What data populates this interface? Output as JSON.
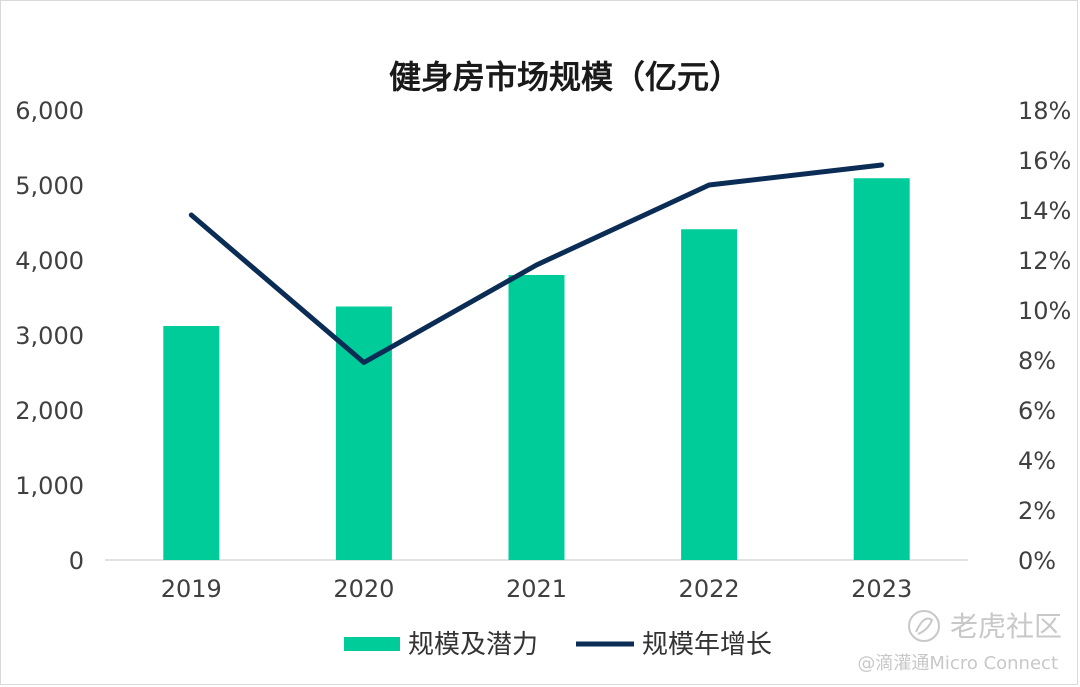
{
  "colors": {
    "bar": "#00cc99",
    "line": "#0b2d55",
    "axis": "#d9d9d9"
  },
  "chart_data": {
    "type": "bar",
    "title": "健身房市场规模（亿元）",
    "categories": [
      "2019",
      "2020",
      "2021",
      "2022",
      "2023"
    ],
    "series": [
      {
        "name": "规模及潜力",
        "type": "bar",
        "axis": "left",
        "values": [
          3120,
          3380,
          3800,
          4410,
          5090
        ]
      },
      {
        "name": "规模年增长",
        "type": "line",
        "axis": "right",
        "values": [
          0.138,
          0.079,
          0.118,
          0.15,
          0.158
        ]
      }
    ],
    "y_left": {
      "min": 0,
      "max": 6000,
      "ticks": [
        "0",
        "1,000",
        "2,000",
        "3,000",
        "4,000",
        "5,000",
        "6,000"
      ]
    },
    "y_right": {
      "min": 0,
      "max": 0.18,
      "ticks": [
        "0%",
        "2%",
        "4%",
        "6%",
        "8%",
        "10%",
        "12%",
        "14%",
        "16%",
        "18%"
      ]
    },
    "grid": false,
    "legend": "bottom"
  },
  "watermark": {
    "brand": "老虎社区",
    "source": "@滴灌通Micro Connect"
  }
}
